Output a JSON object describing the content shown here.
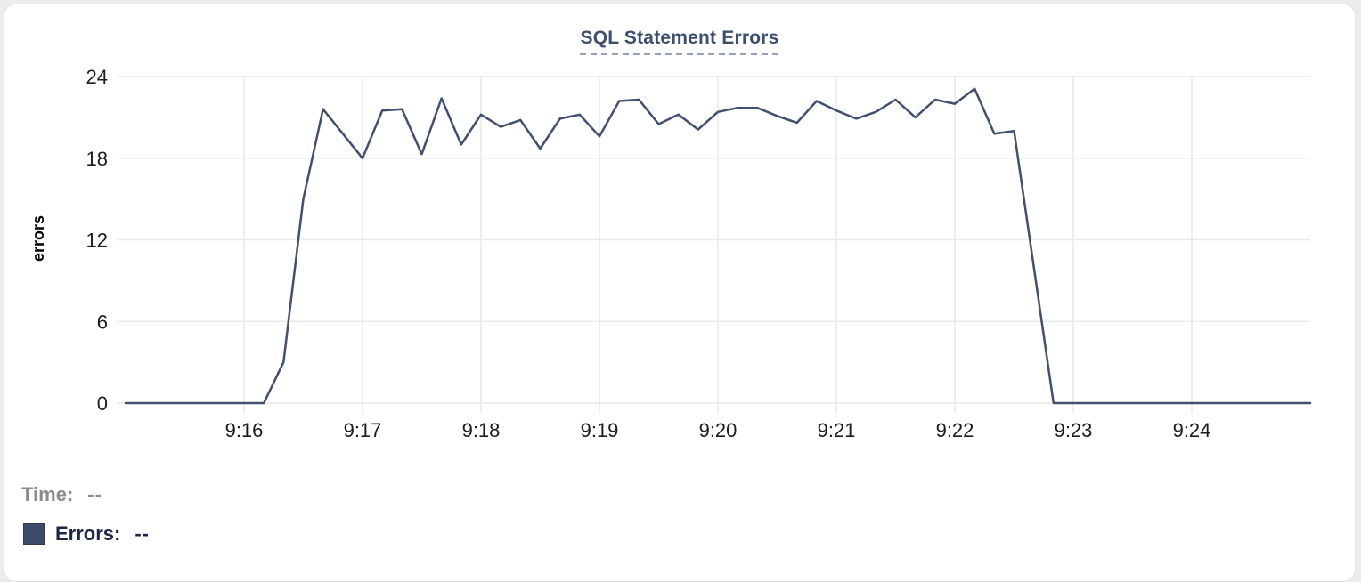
{
  "card": {
    "title": "SQL Statement Errors"
  },
  "chart_data": {
    "type": "line",
    "title": "SQL Statement Errors",
    "xlabel": "",
    "ylabel": "errors",
    "x_start": "9:15:00",
    "x_end": "9:25:00",
    "x_step_seconds": 10,
    "x_span_minutes": 10,
    "x_ticks": [
      {
        "label": "9:16",
        "offset_min": 1
      },
      {
        "label": "9:17",
        "offset_min": 2
      },
      {
        "label": "9:18",
        "offset_min": 3
      },
      {
        "label": "9:19",
        "offset_min": 4
      },
      {
        "label": "9:20",
        "offset_min": 5
      },
      {
        "label": "9:21",
        "offset_min": 6
      },
      {
        "label": "9:22",
        "offset_min": 7
      },
      {
        "label": "9:23",
        "offset_min": 8
      },
      {
        "label": "9:24",
        "offset_min": 9
      }
    ],
    "y_ticks": [
      0,
      6,
      12,
      18,
      24
    ],
    "ylim": [
      0,
      24
    ],
    "grid": true,
    "legend_position": "bottom-left",
    "series": [
      {
        "name": "Errors",
        "color": "#41506e",
        "values": [
          0,
          0,
          0,
          0,
          0,
          0,
          0,
          0,
          3,
          15,
          21.6,
          19.8,
          18,
          21.5,
          21.6,
          18.3,
          22.4,
          19,
          21.2,
          20.3,
          20.8,
          18.7,
          20.9,
          21.2,
          19.6,
          22.2,
          22.3,
          20.5,
          21.2,
          20.1,
          21.4,
          21.7,
          21.7,
          21.1,
          20.6,
          22.2,
          21.5,
          20.9,
          21.4,
          22.3,
          21.0,
          22.3,
          22.0,
          23.1,
          19.8,
          20.0,
          10,
          0,
          0,
          0,
          0,
          0,
          0,
          0,
          0,
          0,
          0,
          0,
          0,
          0,
          0
        ]
      }
    ]
  },
  "legend": {
    "time_label": "Time:",
    "time_value": "--",
    "errors_label": "Errors:",
    "errors_value": "--",
    "swatch_color": "#3e4b68"
  },
  "colors": {
    "title": "#3e4e6e",
    "title_underline": "#93a2c2",
    "line": "#41506e",
    "grid": "#e9e9e9",
    "tick_text": "#1d1d1f",
    "axis_label_text": "#000000",
    "time_text": "#8a8a8f",
    "errors_text": "#1d2544"
  }
}
